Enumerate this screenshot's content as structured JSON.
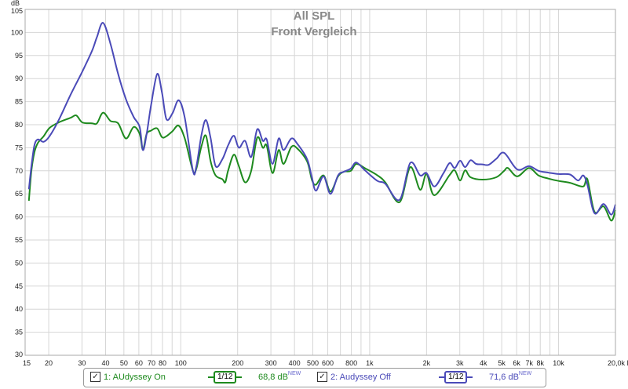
{
  "chart_data": {
    "type": "line",
    "title": "All SPL",
    "subtitle": "Front Vergleich",
    "ylabel": "dB",
    "xlabel": "Hz",
    "xscale": "log",
    "xlim": [
      15,
      20000
    ],
    "ylim": [
      30,
      105
    ],
    "grid": true,
    "yticks": [
      30,
      35,
      40,
      45,
      50,
      55,
      60,
      65,
      70,
      75,
      80,
      85,
      90,
      95,
      100,
      105
    ],
    "xticks": [
      {
        "f": 15,
        "label": "15"
      },
      {
        "f": 20,
        "label": "20"
      },
      {
        "f": 30,
        "label": "30"
      },
      {
        "f": 40,
        "label": "40"
      },
      {
        "f": 50,
        "label": "50"
      },
      {
        "f": 60,
        "label": "60"
      },
      {
        "f": 70,
        "label": "70"
      },
      {
        "f": 80,
        "label": "80"
      },
      {
        "f": 100,
        "label": "100"
      },
      {
        "f": 200,
        "label": "200"
      },
      {
        "f": 300,
        "label": "300"
      },
      {
        "f": 400,
        "label": "400"
      },
      {
        "f": 500,
        "label": "500"
      },
      {
        "f": 600,
        "label": "600"
      },
      {
        "f": 800,
        "label": "800"
      },
      {
        "f": 1000,
        "label": "1k"
      },
      {
        "f": 2000,
        "label": "2k"
      },
      {
        "f": 3000,
        "label": "3k"
      },
      {
        "f": 4000,
        "label": "4k"
      },
      {
        "f": 5000,
        "label": "5k"
      },
      {
        "f": 6000,
        "label": "6k"
      },
      {
        "f": 7000,
        "label": "7k"
      },
      {
        "f": 8000,
        "label": "8k"
      },
      {
        "f": 10000,
        "label": "10k"
      },
      {
        "f": 20000,
        "label": "20,0k Hz"
      }
    ],
    "legend_placement": "bottom",
    "series": [
      {
        "name": "1: AUdyssey On",
        "color": "#1e8a1e",
        "smoothing": "1/12",
        "level": "68,8 dB",
        "badge": "NEW",
        "x": [
          15.7,
          16.2,
          16.8,
          17.5,
          18.8,
          20.2,
          22.6,
          26.1,
          28,
          30.1,
          33.9,
          36,
          38.8,
          42.5,
          46.6,
          51.3,
          56.3,
          60.6,
          63,
          66,
          69.5,
          75,
          79.5,
          84,
          90.5,
          97.5,
          105,
          116,
          121,
          129,
          136,
          144,
          153,
          166,
          172,
          178,
          191,
          203,
          219,
          236,
          254,
          272,
          285,
          306,
          330,
          350,
          385,
          415,
          467,
          495,
          520,
          570,
          620,
          680,
          730,
          795,
          850,
          950,
          1100,
          1210,
          1440,
          1640,
          1850,
          2000,
          2200,
          2650,
          2820,
          3010,
          3200,
          3420,
          3950,
          4680,
          5150,
          5400,
          6040,
          6970,
          7830,
          8870,
          10000,
          11500,
          13500,
          14200,
          15500,
          17300,
          19000,
          20000
        ],
        "y": [
          63.5,
          70,
          74,
          76,
          77.5,
          79.3,
          80.5,
          81.5,
          82,
          80.5,
          80.3,
          80.3,
          82.6,
          80.8,
          80.3,
          77,
          79.5,
          78,
          74.6,
          78,
          78.7,
          79.2,
          77.3,
          77.5,
          78.6,
          79.8,
          77,
          70,
          70.5,
          75.5,
          77.6,
          72,
          69,
          68.2,
          67.5,
          70,
          73.5,
          71,
          67.5,
          70,
          77.2,
          75,
          75.5,
          69.5,
          74.5,
          71.5,
          75.2,
          74.8,
          72,
          68,
          67,
          69,
          65.5,
          68.8,
          69.8,
          70,
          71.5,
          70.5,
          69,
          67.5,
          63.2,
          70.8,
          65.9,
          69.3,
          64.7,
          69.1,
          70.1,
          67.9,
          70.1,
          68.6,
          68.1,
          68.6,
          70,
          70.6,
          68.8,
          70.6,
          69,
          68.3,
          67.8,
          67.4,
          66.6,
          68.2,
          61.1,
          62.3,
          59.2,
          61.5
        ]
      },
      {
        "name": "2: Audyssey Off",
        "color": "#4a4ab8",
        "smoothing": "1/12",
        "level": "71,6 dB",
        "badge": "NEW",
        "x": [
          15.7,
          16.2,
          16.8,
          17.5,
          18.8,
          20.2,
          22.6,
          26.1,
          30.1,
          33.9,
          36,
          38.8,
          42.5,
          46.6,
          51.3,
          56.3,
          60.6,
          63,
          66,
          69.5,
          75,
          79.5,
          84,
          90.5,
          97.5,
          105,
          116,
          121,
          129,
          136,
          144,
          153,
          166,
          178,
          191,
          203,
          219,
          236,
          254,
          272,
          285,
          306,
          330,
          350,
          385,
          415,
          467,
          495,
          520,
          570,
          620,
          680,
          730,
          795,
          850,
          950,
          1100,
          1210,
          1440,
          1640,
          1850,
          2000,
          2200,
          2460,
          2650,
          2820,
          3010,
          3200,
          3420,
          3660,
          3950,
          4260,
          4680,
          5150,
          6040,
          6970,
          7830,
          8870,
          10000,
          11500,
          12700,
          13500,
          14200,
          15500,
          17300,
          19000,
          20000
        ],
        "y": [
          66,
          71,
          75.5,
          76.8,
          76.3,
          77.5,
          81,
          86.5,
          91.5,
          96,
          99,
          102.1,
          97.5,
          91,
          85.5,
          81.7,
          79.5,
          74.5,
          78,
          84,
          91,
          87,
          81.2,
          82.5,
          85.3,
          81.5,
          70,
          71,
          78,
          81,
          77,
          71,
          72.5,
          75.5,
          77.6,
          75,
          76.5,
          73,
          79,
          76.5,
          76.8,
          71.5,
          77,
          74.5,
          77,
          75.8,
          72.5,
          68.5,
          65.7,
          68.8,
          65,
          69,
          69.8,
          70.5,
          71.8,
          70,
          67.8,
          67.2,
          63.7,
          71.7,
          69,
          69.5,
          66.6,
          69.5,
          71.7,
          70.6,
          72.2,
          70.8,
          72.3,
          71.5,
          71.4,
          71.3,
          72.6,
          73.9,
          70.3,
          71,
          70,
          69.6,
          69.3,
          69.2,
          67.9,
          69,
          67,
          60.8,
          62.8,
          60.5,
          62.7
        ]
      }
    ]
  },
  "legend": {
    "check": "✓",
    "smooth_label": "1/12",
    "badge": "NEW"
  }
}
